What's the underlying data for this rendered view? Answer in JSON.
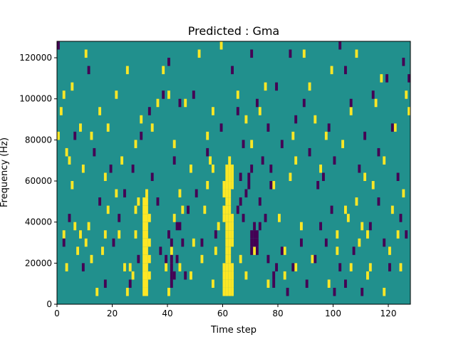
{
  "chart_data": {
    "type": "heatmap",
    "title": "Predicted : Gma",
    "xlabel": "Time step",
    "ylabel": "Frequency (Hz)",
    "xlim": [
      0,
      128
    ],
    "ylim": [
      0,
      128000
    ],
    "x_ticks": [
      0,
      20,
      40,
      60,
      80,
      100,
      120
    ],
    "x_tick_labels": [
      "0",
      "20",
      "40",
      "60",
      "80",
      "100",
      "120"
    ],
    "y_ticks": [
      0,
      20000,
      40000,
      60000,
      80000,
      100000,
      120000
    ],
    "y_tick_labels": [
      "0",
      "20000",
      "40000",
      "60000",
      "80000",
      "100000",
      "120000"
    ],
    "bin_height_hz": 4000,
    "colors": {
      "background": "#21908d",
      "high": "#fde725",
      "low": "#440154"
    },
    "background_value": 0,
    "value_labels": {
      "1": "high",
      "-1": "low"
    },
    "cells": [
      [
        31,
        4,
        1
      ],
      [
        31,
        8,
        1
      ],
      [
        31,
        12,
        1
      ],
      [
        31,
        16,
        1
      ],
      [
        31,
        20,
        1
      ],
      [
        31,
        24,
        1
      ],
      [
        31,
        28,
        1
      ],
      [
        31,
        32,
        1
      ],
      [
        31,
        36,
        1
      ],
      [
        31,
        40,
        1
      ],
      [
        31,
        44,
        1
      ],
      [
        31,
        48,
        1
      ],
      [
        32,
        4,
        1
      ],
      [
        32,
        8,
        1
      ],
      [
        32,
        12,
        1
      ],
      [
        32,
        16,
        1
      ],
      [
        32,
        20,
        1
      ],
      [
        32,
        24,
        1
      ],
      [
        32,
        28,
        1
      ],
      [
        32,
        32,
        1
      ],
      [
        32,
        36,
        1
      ],
      [
        32,
        40,
        1
      ],
      [
        32,
        44,
        1
      ],
      [
        32,
        48,
        1
      ],
      [
        32,
        52,
        1
      ],
      [
        33,
        12,
        1
      ],
      [
        33,
        20,
        1
      ],
      [
        33,
        28,
        1
      ],
      [
        33,
        40,
        1
      ],
      [
        60,
        4,
        1
      ],
      [
        60,
        8,
        1
      ],
      [
        60,
        12,
        1
      ],
      [
        60,
        16,
        1
      ],
      [
        60,
        40,
        1
      ],
      [
        60,
        44,
        1
      ],
      [
        60,
        52,
        1
      ],
      [
        60,
        56,
        1
      ],
      [
        61,
        4,
        1
      ],
      [
        61,
        8,
        1
      ],
      [
        61,
        12,
        1
      ],
      [
        61,
        16,
        1
      ],
      [
        61,
        20,
        1
      ],
      [
        61,
        24,
        1
      ],
      [
        61,
        28,
        1
      ],
      [
        61,
        32,
        1
      ],
      [
        61,
        36,
        1
      ],
      [
        61,
        40,
        1
      ],
      [
        61,
        44,
        1
      ],
      [
        61,
        48,
        1
      ],
      [
        61,
        52,
        1
      ],
      [
        61,
        56,
        1
      ],
      [
        61,
        60,
        1
      ],
      [
        61,
        64,
        1
      ],
      [
        62,
        4,
        1
      ],
      [
        62,
        8,
        1
      ],
      [
        62,
        12,
        1
      ],
      [
        62,
        16,
        1
      ],
      [
        62,
        20,
        1
      ],
      [
        62,
        24,
        1
      ],
      [
        62,
        28,
        1
      ],
      [
        62,
        32,
        1
      ],
      [
        62,
        36,
        1
      ],
      [
        62,
        40,
        1
      ],
      [
        62,
        44,
        1
      ],
      [
        62,
        48,
        1
      ],
      [
        62,
        52,
        1
      ],
      [
        62,
        56,
        1
      ],
      [
        62,
        60,
        1
      ],
      [
        62,
        64,
        1
      ],
      [
        62,
        68,
        1
      ],
      [
        63,
        4,
        1
      ],
      [
        63,
        8,
        1
      ],
      [
        63,
        12,
        1
      ],
      [
        63,
        16,
        1
      ],
      [
        63,
        28,
        1
      ],
      [
        63,
        32,
        1
      ],
      [
        63,
        36,
        1
      ],
      [
        63,
        40,
        1
      ],
      [
        63,
        56,
        1
      ],
      [
        63,
        60,
        1
      ],
      [
        63,
        64,
        1
      ],
      [
        55,
        68,
        1
      ],
      [
        56,
        64,
        1
      ],
      [
        58,
        36,
        1
      ],
      [
        57,
        24,
        1
      ],
      [
        53,
        44,
        1
      ],
      [
        54,
        56,
        1
      ],
      [
        49,
        28,
        1
      ],
      [
        45,
        44,
        1
      ],
      [
        44,
        52,
        1
      ],
      [
        42,
        40,
        1
      ],
      [
        41,
        24,
        1
      ],
      [
        39,
        16,
        1
      ],
      [
        28,
        44,
        1
      ],
      [
        28,
        32,
        1
      ],
      [
        27,
        12,
        1
      ],
      [
        26,
        16,
        1
      ],
      [
        29,
        48,
        1
      ],
      [
        25,
        4,
        1
      ],
      [
        24,
        16,
        1
      ],
      [
        22,
        32,
        1
      ],
      [
        21,
        52,
        1
      ],
      [
        18,
        44,
        1
      ],
      [
        17,
        32,
        1
      ],
      [
        16,
        24,
        1
      ],
      [
        14,
        4,
        1
      ],
      [
        12,
        20,
        1
      ],
      [
        11,
        36,
        1
      ],
      [
        10,
        28,
        1
      ],
      [
        8,
        32,
        1
      ],
      [
        7,
        24,
        1
      ],
      [
        6,
        36,
        1
      ],
      [
        5,
        56,
        1
      ],
      [
        4,
        68,
        1
      ],
      [
        3,
        16,
        1
      ],
      [
        2,
        32,
        1
      ],
      [
        0,
        80,
        1
      ],
      [
        1,
        92,
        1
      ],
      [
        2,
        100,
        1
      ],
      [
        3,
        72,
        1
      ],
      [
        5,
        104,
        1
      ],
      [
        8,
        84,
        1
      ],
      [
        9,
        64,
        1
      ],
      [
        10,
        120,
        1
      ],
      [
        12,
        80,
        1
      ],
      [
        15,
        92,
        1
      ],
      [
        17,
        60,
        1
      ],
      [
        18,
        84,
        1
      ],
      [
        21,
        100,
        1
      ],
      [
        23,
        68,
        1
      ],
      [
        25,
        112,
        1
      ],
      [
        28,
        76,
        1
      ],
      [
        30,
        88,
        1
      ],
      [
        34,
        84,
        1
      ],
      [
        36,
        96,
        1
      ],
      [
        38,
        112,
        1
      ],
      [
        40,
        100,
        1
      ],
      [
        42,
        76,
        1
      ],
      [
        46,
        96,
        1
      ],
      [
        48,
        64,
        1
      ],
      [
        51,
        120,
        1
      ],
      [
        54,
        80,
        1
      ],
      [
        56,
        92,
        1
      ],
      [
        59,
        124,
        1
      ],
      [
        65,
        100,
        1
      ],
      [
        68,
        88,
        1
      ],
      [
        70,
        76,
        1
      ],
      [
        73,
        92,
        1
      ],
      [
        75,
        104,
        1
      ],
      [
        78,
        56,
        1
      ],
      [
        80,
        40,
        1
      ],
      [
        82,
        24,
        1
      ],
      [
        84,
        60,
        1
      ],
      [
        85,
        80,
        1
      ],
      [
        86,
        68,
        1
      ],
      [
        88,
        36,
        1
      ],
      [
        89,
        120,
        1
      ],
      [
        91,
        104,
        1
      ],
      [
        93,
        88,
        1
      ],
      [
        95,
        64,
        1
      ],
      [
        97,
        80,
        1
      ],
      [
        99,
        112,
        1
      ],
      [
        101,
        24,
        1
      ],
      [
        101,
        32,
        1
      ],
      [
        103,
        76,
        1
      ],
      [
        104,
        44,
        1
      ],
      [
        105,
        40,
        1
      ],
      [
        106,
        92,
        1
      ],
      [
        108,
        120,
        1
      ],
      [
        108,
        48,
        1
      ],
      [
        109,
        28,
        1
      ],
      [
        110,
        36,
        1
      ],
      [
        111,
        60,
        1
      ],
      [
        112,
        32,
        1
      ],
      [
        113,
        16,
        1
      ],
      [
        114,
        56,
        1
      ],
      [
        115,
        96,
        1
      ],
      [
        117,
        108,
        1
      ],
      [
        118,
        68,
        1
      ],
      [
        120,
        24,
        1
      ],
      [
        121,
        44,
        1
      ],
      [
        122,
        84,
        1
      ],
      [
        123,
        32,
        1
      ],
      [
        124,
        16,
        1
      ],
      [
        125,
        52,
        1
      ],
      [
        126,
        100,
        1
      ],
      [
        127,
        92,
        1
      ],
      [
        40,
        4,
        1
      ],
      [
        44,
        16,
        1
      ],
      [
        48,
        12,
        1
      ],
      [
        52,
        20,
        1
      ],
      [
        56,
        8,
        1
      ],
      [
        66,
        20,
        1
      ],
      [
        68,
        12,
        1
      ],
      [
        71,
        24,
        1
      ],
      [
        76,
        8,
        1
      ],
      [
        82,
        12,
        1
      ],
      [
        86,
        16,
        1
      ],
      [
        92,
        20,
        1
      ],
      [
        98,
        8,
        1
      ],
      [
        106,
        16,
        1
      ],
      [
        112,
        12,
        1
      ],
      [
        118,
        4,
        1
      ],
      [
        41,
        8,
        -1
      ],
      [
        41,
        12,
        -1
      ],
      [
        41,
        16,
        -1
      ],
      [
        41,
        20,
        -1
      ],
      [
        41,
        28,
        -1
      ],
      [
        40,
        32,
        -1
      ],
      [
        39,
        20,
        -1
      ],
      [
        42,
        12,
        -1
      ],
      [
        43,
        20,
        -1
      ],
      [
        43,
        36,
        -1
      ],
      [
        45,
        28,
        -1
      ],
      [
        44,
        36,
        -1
      ],
      [
        70,
        24,
        -1
      ],
      [
        70,
        28,
        -1
      ],
      [
        70,
        32,
        -1
      ],
      [
        71,
        28,
        -1
      ],
      [
        71,
        32,
        -1
      ],
      [
        71,
        36,
        -1
      ],
      [
        72,
        24,
        -1
      ],
      [
        72,
        28,
        -1
      ],
      [
        72,
        32,
        -1
      ],
      [
        73,
        36,
        -1
      ],
      [
        65,
        44,
        -1
      ],
      [
        66,
        48,
        -1
      ],
      [
        66,
        60,
        -1
      ],
      [
        67,
        40,
        -1
      ],
      [
        68,
        52,
        -1
      ],
      [
        69,
        56,
        -1
      ],
      [
        69,
        60,
        -1
      ],
      [
        70,
        64,
        -1
      ],
      [
        73,
        48,
        -1
      ],
      [
        75,
        40,
        -1
      ],
      [
        77,
        56,
        -1
      ],
      [
        77,
        64,
        -1
      ],
      [
        78,
        12,
        -1
      ],
      [
        78,
        8,
        -1
      ],
      [
        79,
        16,
        -1
      ],
      [
        76,
        20,
        -1
      ],
      [
        81,
        24,
        -1
      ],
      [
        83,
        4,
        -1
      ],
      [
        85,
        16,
        -1
      ],
      [
        88,
        28,
        -1
      ],
      [
        90,
        8,
        -1
      ],
      [
        93,
        20,
        -1
      ],
      [
        95,
        36,
        -1
      ],
      [
        97,
        28,
        -1
      ],
      [
        99,
        44,
        -1
      ],
      [
        100,
        4,
        -1
      ],
      [
        102,
        16,
        -1
      ],
      [
        104,
        8,
        -1
      ],
      [
        107,
        24,
        -1
      ],
      [
        110,
        4,
        -1
      ],
      [
        113,
        36,
        -1
      ],
      [
        116,
        48,
        -1
      ],
      [
        118,
        28,
        -1
      ],
      [
        120,
        16,
        -1
      ],
      [
        124,
        40,
        -1
      ],
      [
        126,
        32,
        -1
      ],
      [
        0,
        124,
        -1
      ],
      [
        2,
        28,
        -1
      ],
      [
        4,
        40,
        -1
      ],
      [
        6,
        80,
        -1
      ],
      [
        9,
        16,
        -1
      ],
      [
        11,
        112,
        -1
      ],
      [
        13,
        72,
        -1
      ],
      [
        15,
        48,
        -1
      ],
      [
        17,
        8,
        -1
      ],
      [
        19,
        64,
        -1
      ],
      [
        20,
        28,
        -1
      ],
      [
        22,
        40,
        -1
      ],
      [
        24,
        52,
        -1
      ],
      [
        26,
        8,
        -1
      ],
      [
        27,
        64,
        -1
      ],
      [
        29,
        20,
        -1
      ],
      [
        30,
        80,
        -1
      ],
      [
        33,
        92,
        -1
      ],
      [
        34,
        60,
        -1
      ],
      [
        36,
        48,
        -1
      ],
      [
        37,
        24,
        -1
      ],
      [
        38,
        100,
        -1
      ],
      [
        40,
        116,
        -1
      ],
      [
        42,
        68,
        -1
      ],
      [
        44,
        96,
        -1
      ],
      [
        46,
        12,
        -1
      ],
      [
        47,
        44,
        -1
      ],
      [
        49,
        100,
        -1
      ],
      [
        50,
        52,
        -1
      ],
      [
        52,
        28,
        -1
      ],
      [
        54,
        72,
        -1
      ],
      [
        57,
        32,
        -1
      ],
      [
        59,
        84,
        -1
      ],
      [
        63,
        112,
        -1
      ],
      [
        65,
        92,
        -1
      ],
      [
        67,
        76,
        -1
      ],
      [
        70,
        120,
        -1
      ],
      [
        72,
        96,
        -1
      ],
      [
        74,
        68,
        -1
      ],
      [
        76,
        84,
        -1
      ],
      [
        79,
        104,
        -1
      ],
      [
        81,
        76,
        -1
      ],
      [
        84,
        120,
        -1
      ],
      [
        86,
        88,
        -1
      ],
      [
        89,
        96,
        -1
      ],
      [
        91,
        72,
        -1
      ],
      [
        94,
        56,
        -1
      ],
      [
        96,
        60,
        -1
      ],
      [
        98,
        84,
        -1
      ],
      [
        100,
        68,
        -1
      ],
      [
        102,
        124,
        -1
      ],
      [
        104,
        112,
        -1
      ],
      [
        106,
        96,
        -1
      ],
      [
        109,
        64,
        -1
      ],
      [
        111,
        80,
        -1
      ],
      [
        114,
        100,
        -1
      ],
      [
        116,
        72,
        -1
      ],
      [
        119,
        108,
        -1
      ],
      [
        121,
        84,
        -1
      ],
      [
        123,
        60,
        -1
      ],
      [
        125,
        116,
        -1
      ],
      [
        127,
        108,
        -1
      ]
    ]
  }
}
